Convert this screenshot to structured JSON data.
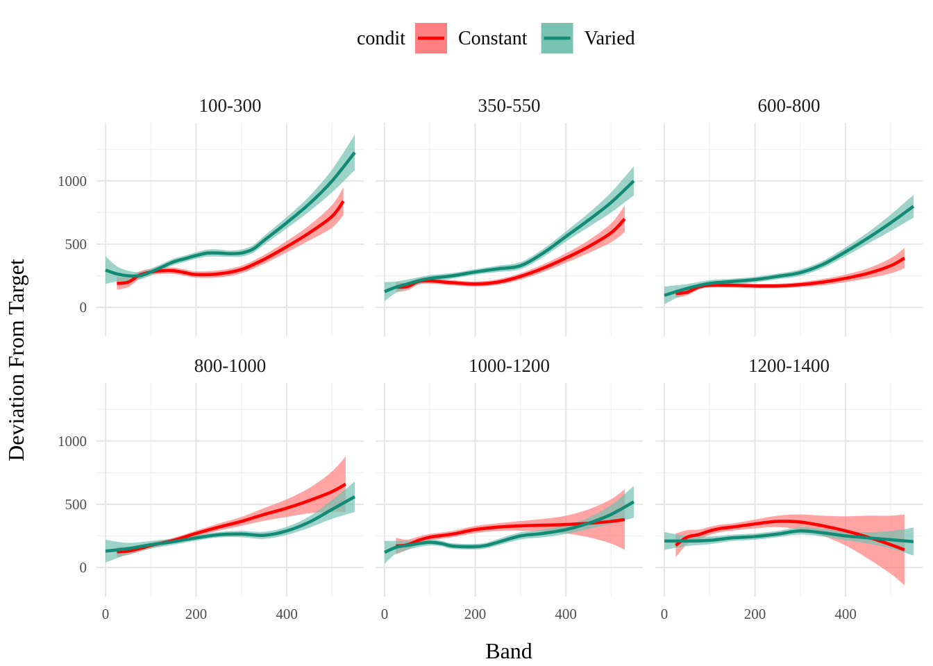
{
  "chart_data": {
    "type": "line",
    "xlabel": "Band",
    "ylabel": "Deviation From Target",
    "xlim": [
      -20,
      570
    ],
    "ylim": [
      -230,
      1460
    ],
    "x_ticks": [
      0,
      200,
      400
    ],
    "x_minor": [
      100,
      300,
      500
    ],
    "y_ticks": [
      0,
      500,
      1000
    ],
    "y_minor": [
      250,
      750,
      1250
    ],
    "grid": true,
    "legend": {
      "title": "condit",
      "position": "top",
      "entries": [
        {
          "name": "Constant",
          "color": "#ff0000",
          "fill": "#ff8080"
        },
        {
          "name": "Varied",
          "color": "#138a76",
          "fill": "#77c2b3"
        }
      ]
    },
    "panels": [
      {
        "label": "100-300",
        "series": [
          {
            "name": "Constant",
            "x": [
              25,
              50,
              75,
              100,
              125,
              150,
              175,
              200,
              250,
              300,
              350,
              400,
              450,
              500,
              525
            ],
            "y": [
              190,
              200,
              255,
              280,
              290,
              290,
              275,
              260,
              265,
              300,
              380,
              480,
              590,
              720,
              840
            ],
            "band": [
              50,
              40,
              30,
              25,
              25,
              25,
              25,
              25,
              28,
              30,
              35,
              45,
              60,
              90,
              110
            ]
          },
          {
            "name": "Varied",
            "x": [
              0,
              25,
              50,
              75,
              100,
              125,
              150,
              175,
              200,
              225,
              250,
              275,
              300,
              325,
              350,
              400,
              450,
              500,
              550
            ],
            "y": [
              295,
              265,
              250,
              250,
              280,
              320,
              360,
              385,
              410,
              430,
              430,
              425,
              430,
              460,
              530,
              670,
              820,
              1000,
              1225
            ],
            "band": [
              110,
              60,
              40,
              30,
              28,
              25,
              25,
              25,
              25,
              28,
              28,
              25,
              28,
              30,
              35,
              45,
              60,
              90,
              140
            ]
          }
        ]
      },
      {
        "label": "350-550",
        "series": [
          {
            "name": "Constant",
            "x": [
              25,
              50,
              75,
              100,
              150,
              200,
              250,
              300,
              350,
              400,
              450,
              500,
              530
            ],
            "y": [
              160,
              165,
              205,
              210,
              195,
              185,
              200,
              245,
              310,
              390,
              480,
              590,
              700
            ],
            "band": [
              40,
              30,
              25,
              22,
              20,
              20,
              22,
              25,
              30,
              38,
              50,
              75,
              105
            ]
          },
          {
            "name": "Varied",
            "x": [
              0,
              25,
              50,
              75,
              100,
              150,
              200,
              250,
              300,
              350,
              400,
              450,
              500,
              550
            ],
            "y": [
              125,
              160,
              185,
              210,
              230,
              250,
              280,
              305,
              330,
              430,
              560,
              690,
              830,
              1000
            ],
            "band": [
              75,
              45,
              35,
              28,
              25,
              22,
              22,
              25,
              28,
              32,
              40,
              55,
              80,
              115
            ]
          }
        ]
      },
      {
        "label": "600-800",
        "series": [
          {
            "name": "Constant",
            "x": [
              25,
              50,
              75,
              100,
              150,
              200,
              250,
              300,
              350,
              400,
              450,
              500,
              530
            ],
            "y": [
              110,
              120,
              160,
              175,
              175,
              170,
              170,
              180,
              200,
              230,
              270,
              330,
              390
            ],
            "band": [
              35,
              25,
              20,
              18,
              18,
              18,
              18,
              20,
              25,
              30,
              40,
              60,
              80
            ]
          },
          {
            "name": "Varied",
            "x": [
              0,
              50,
              100,
              150,
              200,
              250,
              300,
              350,
              400,
              450,
              500,
              550
            ],
            "y": [
              95,
              150,
              190,
              205,
              220,
              245,
              275,
              340,
              440,
              550,
              670,
              800
            ],
            "band": [
              70,
              35,
              25,
              22,
              22,
              22,
              25,
              28,
              35,
              45,
              65,
              90
            ]
          }
        ]
      },
      {
        "label": "800-1000",
        "series": [
          {
            "name": "Constant",
            "x": [
              25,
              50,
              75,
              100,
              125,
              150,
              200,
              250,
              300,
              350,
              400,
              450,
              500,
              530
            ],
            "y": [
              125,
              130,
              150,
              175,
              195,
              215,
              270,
              320,
              365,
              420,
              470,
              530,
              600,
              660
            ],
            "band": [
              40,
              30,
              25,
              22,
              20,
              20,
              22,
              28,
              35,
              50,
              70,
              100,
              160,
              220
            ]
          },
          {
            "name": "Varied",
            "x": [
              0,
              50,
              100,
              150,
              200,
              250,
              300,
              350,
              400,
              450,
              500,
              550
            ],
            "y": [
              130,
              150,
              180,
              205,
              235,
              260,
              265,
              255,
              290,
              360,
              460,
              560
            ],
            "band": [
              90,
              45,
              30,
              25,
              22,
              22,
              25,
              28,
              32,
              45,
              75,
              120
            ]
          }
        ]
      },
      {
        "label": "1000-1200",
        "series": [
          {
            "name": "Constant",
            "x": [
              25,
              50,
              75,
              100,
              150,
              200,
              250,
              300,
              350,
              400,
              450,
              500,
              530
            ],
            "y": [
              170,
              180,
              215,
              240,
              265,
              300,
              320,
              330,
              335,
              340,
              350,
              365,
              380
            ],
            "band": [
              65,
              40,
              30,
              25,
              25,
              28,
              30,
              38,
              50,
              70,
              110,
              175,
              240
            ]
          },
          {
            "name": "Varied",
            "x": [
              0,
              25,
              50,
              75,
              100,
              125,
              150,
              200,
              225,
              250,
              300,
              350,
              400,
              450,
              500,
              550
            ],
            "y": [
              120,
              160,
              175,
              190,
              200,
              190,
              170,
              165,
              175,
              200,
              250,
              270,
              300,
              350,
              420,
              520
            ],
            "band": [
              90,
              50,
              35,
              28,
              25,
              22,
              22,
              22,
              22,
              25,
              28,
              30,
              35,
              45,
              75,
              125
            ]
          }
        ]
      },
      {
        "label": "1200-1400",
        "series": [
          {
            "name": "Constant",
            "x": [
              25,
              50,
              75,
              100,
              125,
              150,
              200,
              250,
              300,
              350,
              400,
              450,
              500,
              530
            ],
            "y": [
              175,
              240,
              260,
              290,
              310,
              320,
              345,
              365,
              360,
              330,
              290,
              240,
              180,
              140
            ],
            "band": [
              95,
              55,
              40,
              32,
              30,
              28,
              35,
              45,
              60,
              80,
              115,
              170,
              230,
              280
            ]
          },
          {
            "name": "Varied",
            "x": [
              0,
              50,
              100,
              150,
              200,
              250,
              300,
              350,
              400,
              450,
              500,
              550
            ],
            "y": [
              210,
              210,
              215,
              235,
              245,
              265,
              290,
              275,
              250,
              235,
              220,
              205
            ],
            "band": [
              70,
              40,
              30,
              25,
              25,
              25,
              28,
              30,
              35,
              45,
              70,
              110
            ]
          }
        ]
      }
    ]
  }
}
